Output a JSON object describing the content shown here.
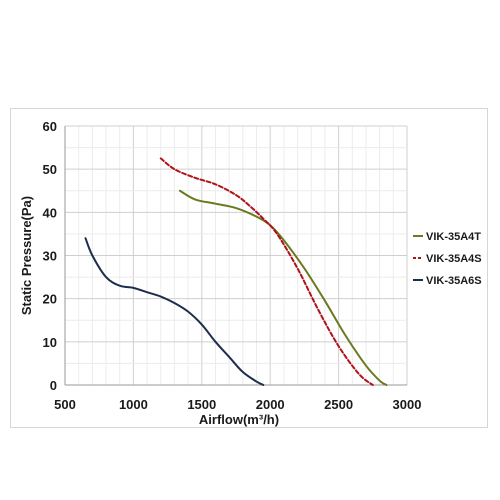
{
  "chart_data": {
    "type": "line",
    "title": "",
    "xlabel": "Airflow(m³/h)",
    "ylabel": "Static Pressure(Pa)",
    "xlim": [
      500,
      3000
    ],
    "ylim": [
      0,
      60
    ],
    "xticks": [
      500,
      1000,
      1500,
      2000,
      2500,
      3000
    ],
    "yticks": [
      0,
      10,
      20,
      30,
      40,
      50,
      60
    ],
    "grid": true,
    "legend_position": "right",
    "series": [
      {
        "name": "VIK-35A4T",
        "color": "#6b7a1f",
        "dash": "solid",
        "x": [
          1340,
          1450,
          1600,
          1750,
          1900,
          2000,
          2100,
          2250,
          2400,
          2550,
          2700,
          2800,
          2850
        ],
        "y": [
          45,
          43,
          42,
          41,
          39,
          37,
          33.5,
          27,
          19.5,
          11.5,
          4.5,
          1,
          0
        ]
      },
      {
        "name": "VIK-35A4S",
        "color": "#b0121b",
        "dash": "dashed",
        "x": [
          1200,
          1300,
          1450,
          1600,
          1750,
          1850,
          1950,
          2050,
          2200,
          2350,
          2500,
          2650,
          2750
        ],
        "y": [
          52.5,
          50,
          48,
          46.5,
          44,
          41.5,
          38.5,
          35,
          27,
          17.5,
          9,
          2.5,
          0
        ]
      },
      {
        "name": "VIK-35A6S",
        "color": "#1f2d4d",
        "dash": "solid",
        "x": [
          650,
          700,
          800,
          900,
          1000,
          1100,
          1200,
          1300,
          1400,
          1500,
          1600,
          1700,
          1800,
          1900,
          1950
        ],
        "y": [
          34,
          30,
          25,
          23,
          22.5,
          21.5,
          20.5,
          19,
          17,
          14,
          10,
          6.5,
          3,
          0.8,
          0
        ]
      }
    ]
  }
}
